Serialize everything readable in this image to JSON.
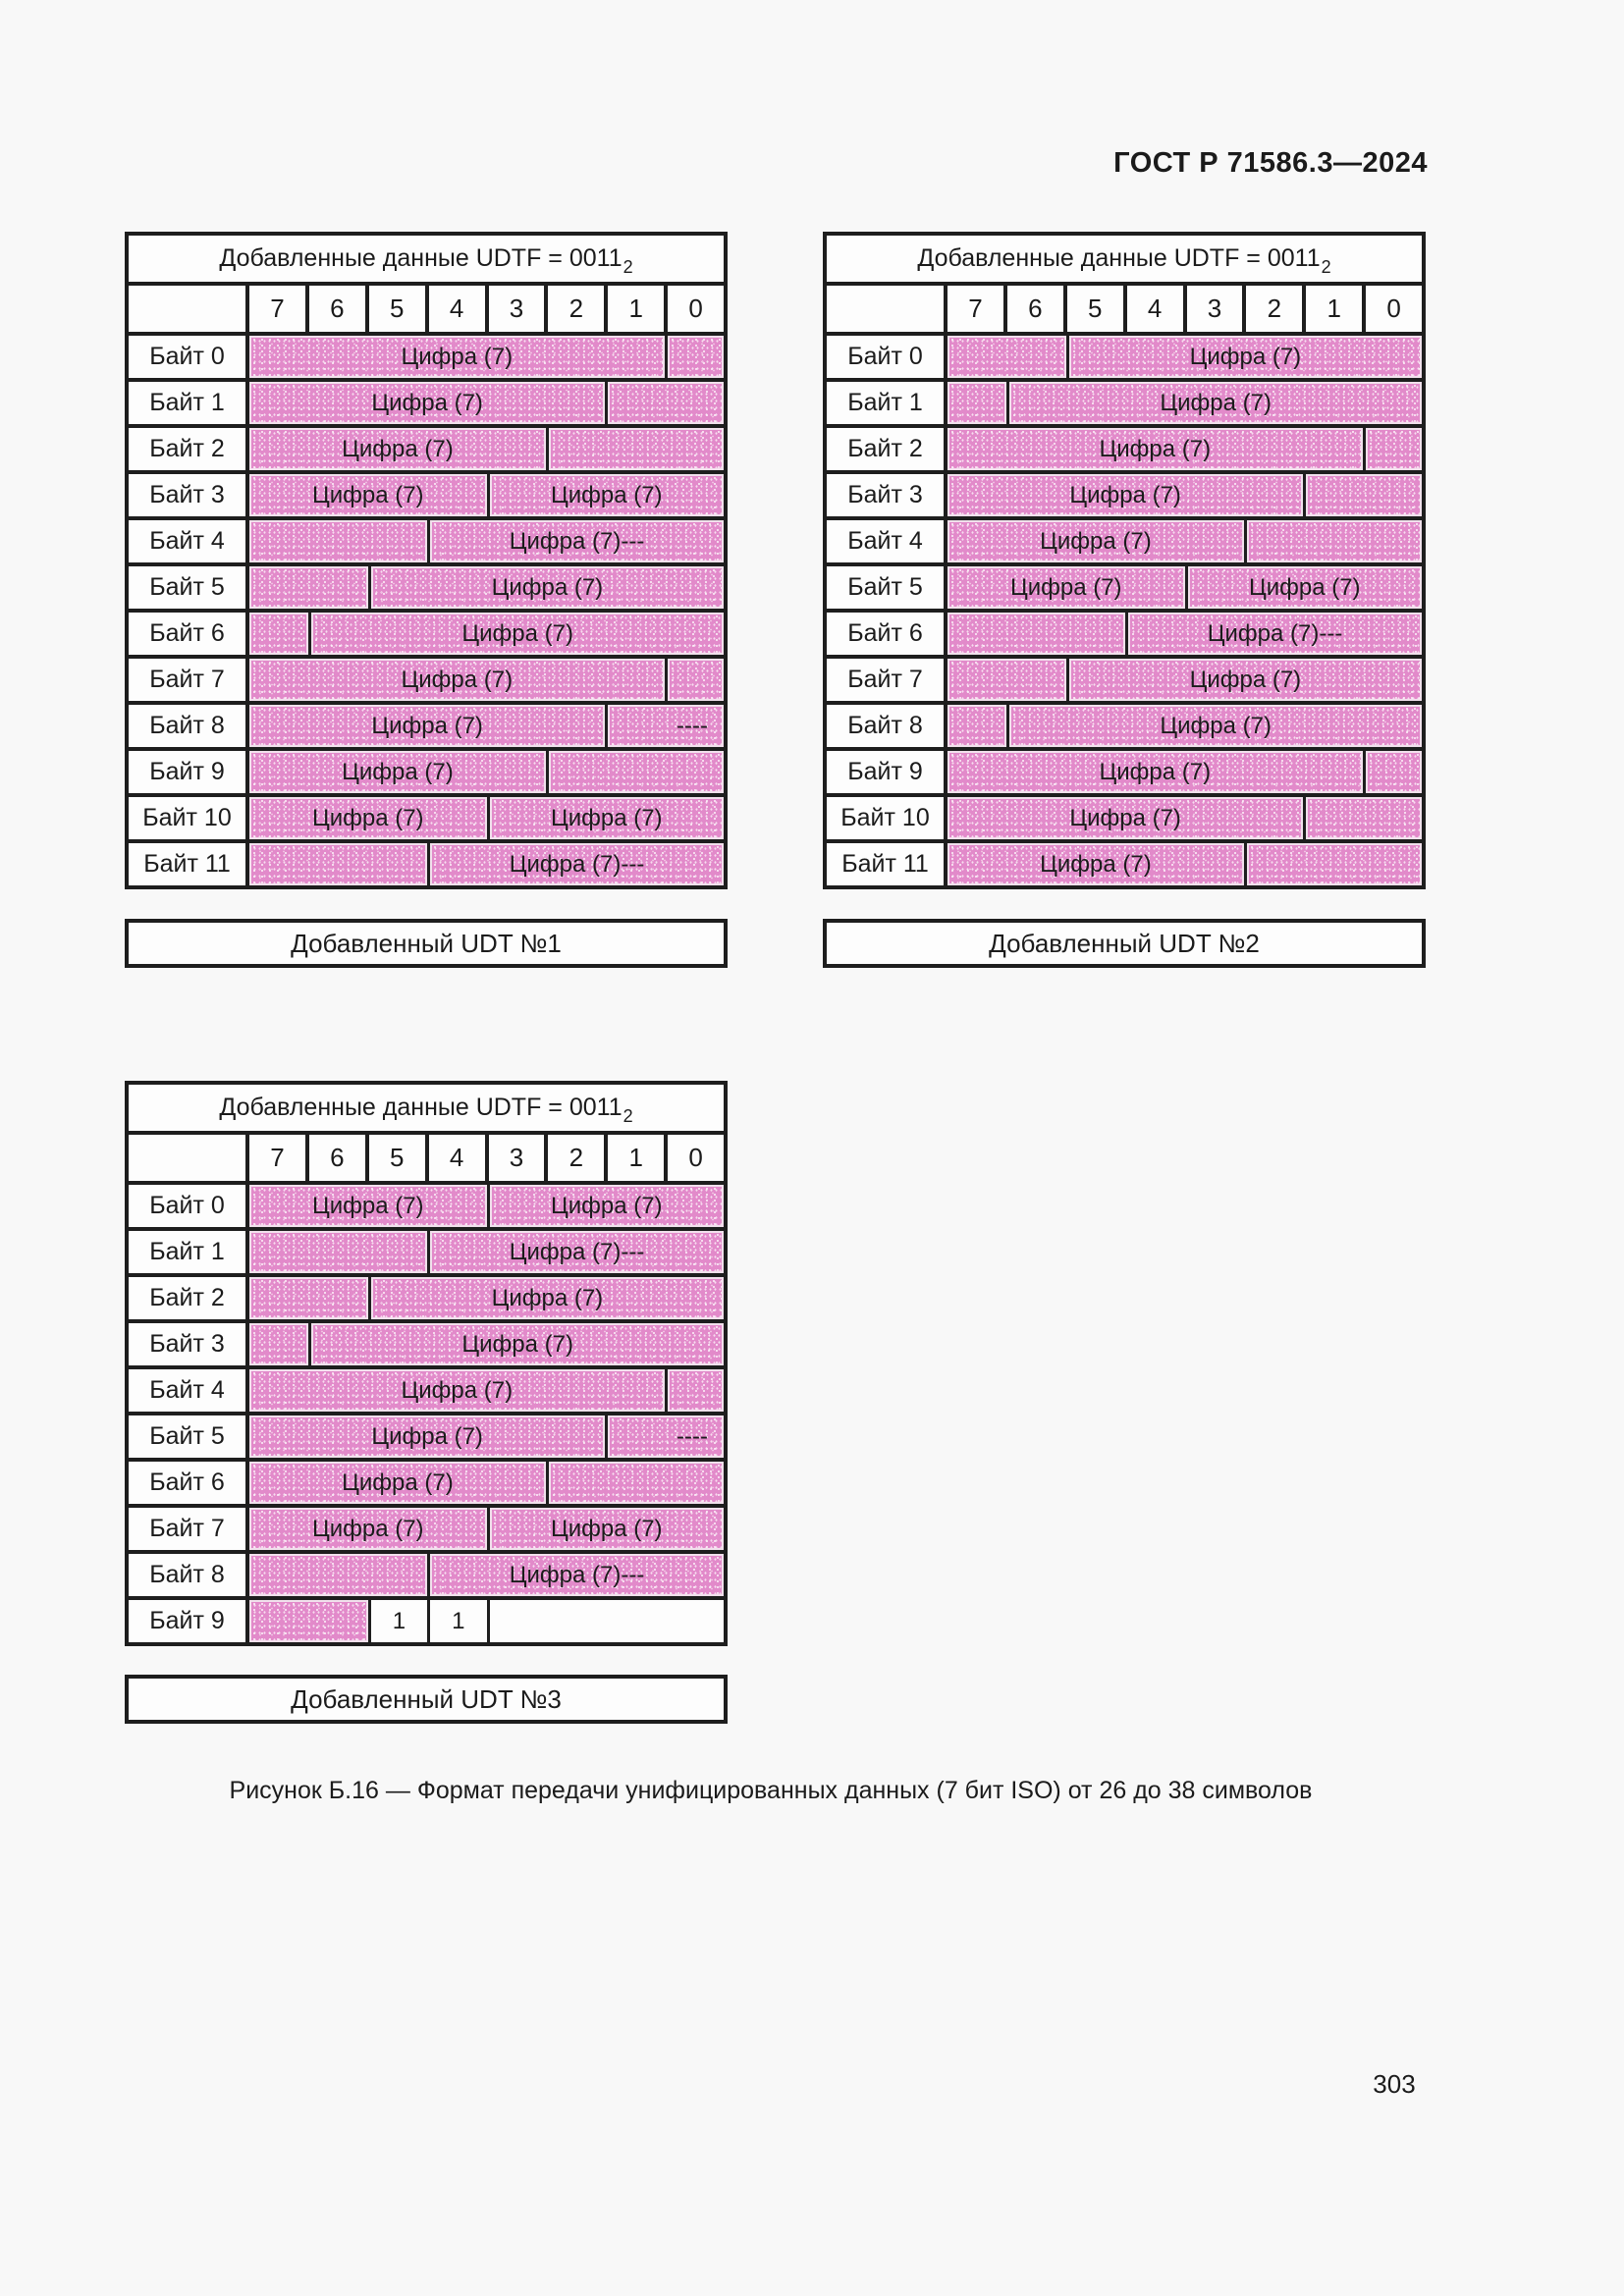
{
  "page": {
    "header": "ГОСТ Р 71586.3—2024",
    "figure_caption": "Рисунок Б.16 — Формат передачи унифицированных данных (7 бит ISO) от 26 до 38 символов",
    "page_number": "303"
  },
  "colors": {
    "field_fill": "#e28aca",
    "grid_line": "#1e1e1e",
    "page_background": "#f8f8f8"
  },
  "bit_labels": [
    "7",
    "6",
    "5",
    "4",
    "3",
    "2",
    "1",
    "0"
  ],
  "tables": [
    {
      "title_main": "Добавленные данные UDTF = 0011",
      "title_sub": "2",
      "caption": "Добавленный UDT №1",
      "rows": [
        {
          "label": "Байт 0",
          "cells": [
            {
              "span": 7,
              "fill": true,
              "text": "Цифра (7)"
            },
            {
              "span": 1,
              "fill": true,
              "text": ""
            }
          ]
        },
        {
          "label": "Байт 1",
          "cells": [
            {
              "span": 6,
              "fill": true,
              "text": "Цифра (7)"
            },
            {
              "span": 2,
              "fill": true,
              "text": ""
            }
          ]
        },
        {
          "label": "Байт 2",
          "cells": [
            {
              "span": 5,
              "fill": true,
              "text": "Цифра (7)"
            },
            {
              "span": 3,
              "fill": true,
              "text": ""
            }
          ]
        },
        {
          "label": "Байт 3",
          "cells": [
            {
              "span": 4,
              "fill": true,
              "text": "Цифра (7)"
            },
            {
              "span": 4,
              "fill": true,
              "text": "Цифра (7)"
            }
          ]
        },
        {
          "label": "Байт 4",
          "cells": [
            {
              "span": 3,
              "fill": true,
              "text": ""
            },
            {
              "span": 5,
              "fill": true,
              "text": "Цифра (7)---"
            }
          ]
        },
        {
          "label": "Байт 5",
          "cells": [
            {
              "span": 2,
              "fill": true,
              "text": ""
            },
            {
              "span": 6,
              "fill": true,
              "text": "Цифра (7)"
            }
          ]
        },
        {
          "label": "Байт 6",
          "cells": [
            {
              "span": 1,
              "fill": true,
              "text": ""
            },
            {
              "span": 7,
              "fill": true,
              "text": "Цифра (7)"
            }
          ]
        },
        {
          "label": "Байт 7",
          "cells": [
            {
              "span": 7,
              "fill": true,
              "text": "Цифра (7)"
            },
            {
              "span": 1,
              "fill": true,
              "text": ""
            }
          ]
        },
        {
          "label": "Байт 8",
          "cells": [
            {
              "span": 6,
              "fill": true,
              "text": "Цифра (7)"
            },
            {
              "span": 2,
              "fill": true,
              "text": "----",
              "align": "right"
            }
          ]
        },
        {
          "label": "Байт 9",
          "cells": [
            {
              "span": 5,
              "fill": true,
              "text": "Цифра (7)"
            },
            {
              "span": 3,
              "fill": true,
              "text": ""
            }
          ]
        },
        {
          "label": "Байт 10",
          "cells": [
            {
              "span": 4,
              "fill": true,
              "text": "Цифра (7)"
            },
            {
              "span": 4,
              "fill": true,
              "text": "Цифра (7)"
            }
          ]
        },
        {
          "label": "Байт 11",
          "cells": [
            {
              "span": 3,
              "fill": true,
              "text": ""
            },
            {
              "span": 5,
              "fill": true,
              "text": "Цифра (7)---"
            }
          ]
        }
      ]
    },
    {
      "title_main": "Добавленные данные UDTF = 0011",
      "title_sub": "2",
      "caption": "Добавленный UDT №2",
      "rows": [
        {
          "label": "Байт 0",
          "cells": [
            {
              "span": 2,
              "fill": true,
              "text": ""
            },
            {
              "span": 6,
              "fill": true,
              "text": "Цифра (7)"
            }
          ]
        },
        {
          "label": "Байт 1",
          "cells": [
            {
              "span": 1,
              "fill": true,
              "text": ""
            },
            {
              "span": 7,
              "fill": true,
              "text": "Цифра (7)"
            }
          ]
        },
        {
          "label": "Байт 2",
          "cells": [
            {
              "span": 7,
              "fill": true,
              "text": "Цифра (7)"
            },
            {
              "span": 1,
              "fill": true,
              "text": ""
            }
          ]
        },
        {
          "label": "Байт 3",
          "cells": [
            {
              "span": 6,
              "fill": true,
              "text": "Цифра (7)"
            },
            {
              "span": 2,
              "fill": true,
              "text": ""
            }
          ]
        },
        {
          "label": "Байт 4",
          "cells": [
            {
              "span": 5,
              "fill": true,
              "text": "Цифра (7)"
            },
            {
              "span": 3,
              "fill": true,
              "text": ""
            }
          ]
        },
        {
          "label": "Байт 5",
          "cells": [
            {
              "span": 4,
              "fill": true,
              "text": "Цифра (7)"
            },
            {
              "span": 4,
              "fill": true,
              "text": "Цифра (7)"
            }
          ]
        },
        {
          "label": "Байт 6",
          "cells": [
            {
              "span": 3,
              "fill": true,
              "text": ""
            },
            {
              "span": 5,
              "fill": true,
              "text": "Цифра (7)---"
            }
          ]
        },
        {
          "label": "Байт 7",
          "cells": [
            {
              "span": 2,
              "fill": true,
              "text": ""
            },
            {
              "span": 6,
              "fill": true,
              "text": "Цифра (7)"
            }
          ]
        },
        {
          "label": "Байт 8",
          "cells": [
            {
              "span": 1,
              "fill": true,
              "text": ""
            },
            {
              "span": 7,
              "fill": true,
              "text": "Цифра (7)"
            }
          ]
        },
        {
          "label": "Байт 9",
          "cells": [
            {
              "span": 7,
              "fill": true,
              "text": "Цифра (7)"
            },
            {
              "span": 1,
              "fill": true,
              "text": ""
            }
          ]
        },
        {
          "label": "Байт 10",
          "cells": [
            {
              "span": 6,
              "fill": true,
              "text": "Цифра (7)"
            },
            {
              "span": 2,
              "fill": true,
              "text": ""
            }
          ]
        },
        {
          "label": "Байт 11",
          "cells": [
            {
              "span": 5,
              "fill": true,
              "text": "Цифра (7)"
            },
            {
              "span": 3,
              "fill": true,
              "text": ""
            }
          ]
        }
      ]
    },
    {
      "title_main": "Добавленные данные UDTF = 0011",
      "title_sub": "2",
      "caption": "Добавленный UDT №3",
      "rows": [
        {
          "label": "Байт 0",
          "cells": [
            {
              "span": 4,
              "fill": true,
              "text": "Цифра (7)"
            },
            {
              "span": 4,
              "fill": true,
              "text": "Цифра (7)"
            }
          ]
        },
        {
          "label": "Байт 1",
          "cells": [
            {
              "span": 3,
              "fill": true,
              "text": ""
            },
            {
              "span": 5,
              "fill": true,
              "text": "Цифра (7)---"
            }
          ]
        },
        {
          "label": "Байт 2",
          "cells": [
            {
              "span": 2,
              "fill": true,
              "text": ""
            },
            {
              "span": 6,
              "fill": true,
              "text": "Цифра (7)"
            }
          ]
        },
        {
          "label": "Байт 3",
          "cells": [
            {
              "span": 1,
              "fill": true,
              "text": ""
            },
            {
              "span": 7,
              "fill": true,
              "text": "Цифра (7)"
            }
          ]
        },
        {
          "label": "Байт 4",
          "cells": [
            {
              "span": 7,
              "fill": true,
              "text": "Цифра (7)"
            },
            {
              "span": 1,
              "fill": true,
              "text": ""
            }
          ]
        },
        {
          "label": "Байт 5",
          "cells": [
            {
              "span": 6,
              "fill": true,
              "text": "Цифра (7)"
            },
            {
              "span": 2,
              "fill": true,
              "text": "----",
              "align": "right"
            }
          ]
        },
        {
          "label": "Байт 6",
          "cells": [
            {
              "span": 5,
              "fill": true,
              "text": "Цифра (7)"
            },
            {
              "span": 3,
              "fill": true,
              "text": ""
            }
          ]
        },
        {
          "label": "Байт 7",
          "cells": [
            {
              "span": 4,
              "fill": true,
              "text": "Цифра (7)"
            },
            {
              "span": 4,
              "fill": true,
              "text": "Цифра (7)"
            }
          ]
        },
        {
          "label": "Байт 8",
          "cells": [
            {
              "span": 3,
              "fill": true,
              "text": ""
            },
            {
              "span": 5,
              "fill": true,
              "text": "Цифра (7)---"
            }
          ]
        },
        {
          "label": "Байт 9",
          "cells": [
            {
              "span": 2,
              "fill": true,
              "text": ""
            },
            {
              "span": 1,
              "fill": false,
              "text": "1"
            },
            {
              "span": 1,
              "fill": false,
              "text": "1"
            },
            {
              "span": 4,
              "fill": false,
              "text": ""
            }
          ]
        }
      ]
    }
  ]
}
